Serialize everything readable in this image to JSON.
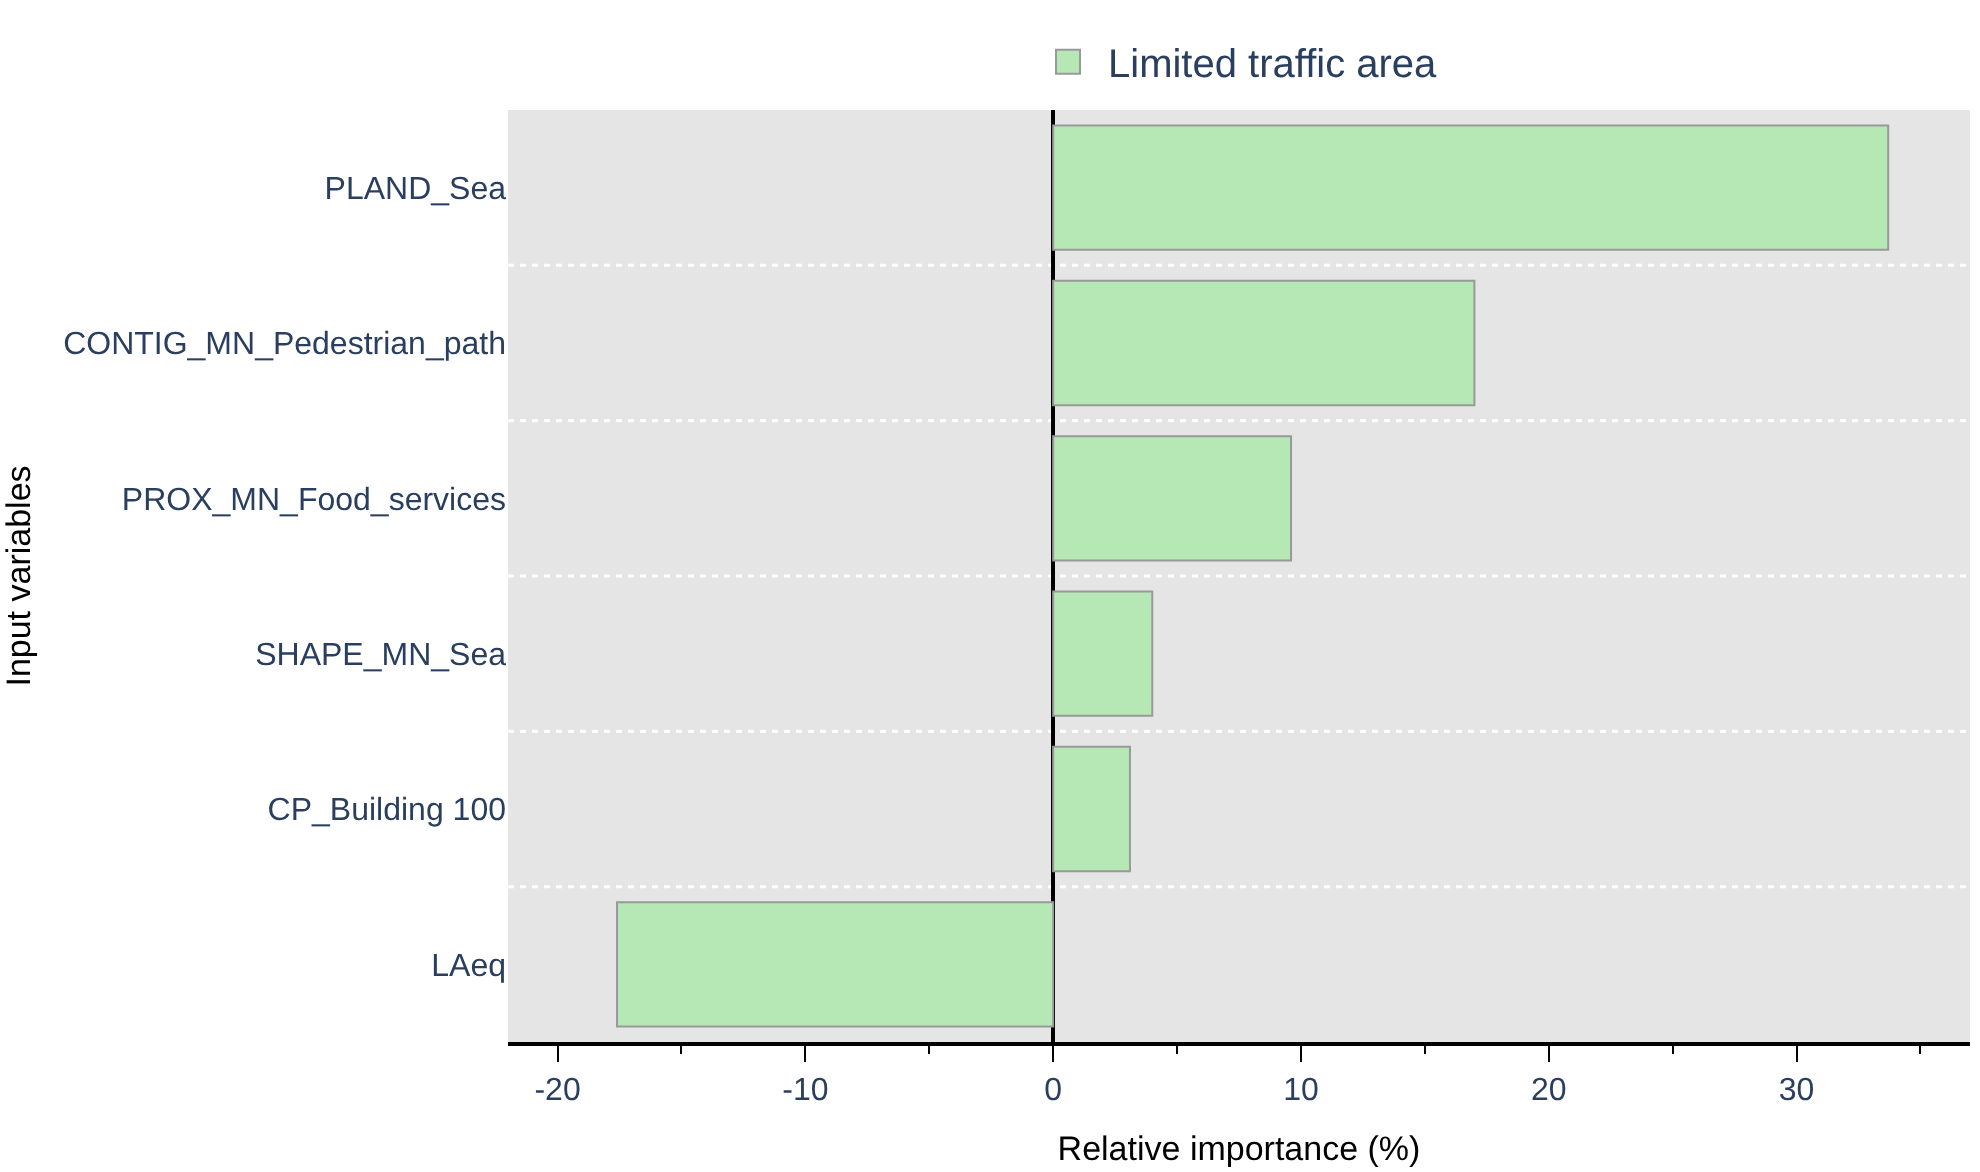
{
  "chart_data": {
    "type": "bar",
    "orientation": "horizontal",
    "xlabel": "Relative importance (%)",
    "ylabel": "Input variables",
    "categories": [
      "PLAND_Sea",
      "CONTIG_MN_Pedestrian_path",
      "PROX_MN_Food_services",
      "SHAPE_MN_Sea",
      "CP_Building 100",
      "LAeq"
    ],
    "series": [
      {
        "name": "Limited traffic area",
        "color": "#b5e8b5",
        "values": [
          33.7,
          17.0,
          9.6,
          4.0,
          3.1,
          -17.6
        ]
      }
    ],
    "xlim": [
      -22,
      37
    ],
    "xticks": [
      -20,
      -10,
      0,
      10,
      20,
      30
    ],
    "grid": "y",
    "legend": "top"
  }
}
